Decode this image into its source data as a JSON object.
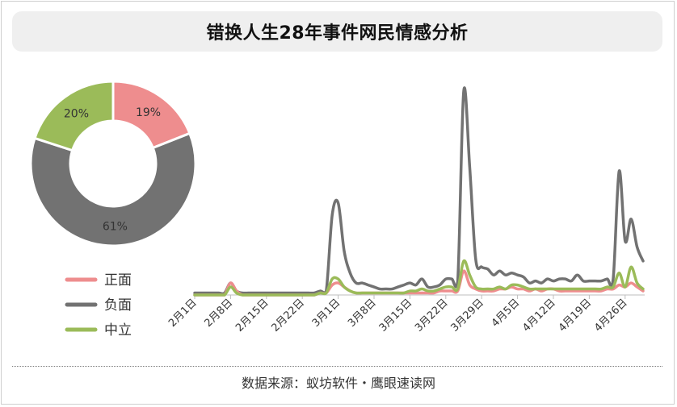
{
  "title": "错换人生28年事件网民情感分析",
  "source": "数据来源：蚁坊软件・鹰眼速读网",
  "colors": {
    "positive": "#ee8d8e",
    "negative": "#727272",
    "neutral": "#9bbb59"
  },
  "chart_data": [
    {
      "type": "pie",
      "subtype": "donut",
      "slices": [
        {
          "name": "正面",
          "value": 19,
          "label": "19%",
          "color": "#ee8d8e"
        },
        {
          "name": "负面",
          "value": 61,
          "label": "61%",
          "color": "#727272"
        },
        {
          "name": "中立",
          "value": 20,
          "label": "20%",
          "color": "#9bbb59"
        }
      ]
    },
    {
      "type": "line",
      "legend": [
        "正面",
        "负面",
        "中立"
      ],
      "legend_position": "left",
      "x_start": "2月1日",
      "x_end": "4月29日",
      "x_tick_labels": [
        "2月1日",
        "2月8日",
        "2月15日",
        "2月22日",
        "3月1日",
        "3月8日",
        "3月15日",
        "3月22日",
        "3月29日",
        "4月5日",
        "4月12日",
        "4月19日",
        "4月26日"
      ],
      "grid": false,
      "y_axis_visible": false,
      "series": [
        {
          "name": "负面",
          "color": "#727272",
          "values": [
            1,
            1,
            1,
            1,
            1,
            1,
            6,
            2,
            1,
            1,
            1,
            1,
            1,
            1,
            1,
            1,
            1,
            1,
            1,
            1,
            1,
            2,
            2,
            40,
            46,
            22,
            11,
            6,
            6,
            5,
            4,
            3,
            3,
            3,
            4,
            5,
            6,
            5,
            8,
            4,
            4,
            5,
            8,
            8,
            7,
            102,
            64,
            18,
            14,
            13,
            10,
            12,
            10,
            11,
            10,
            9,
            6,
            7,
            6,
            8,
            7,
            8,
            8,
            7,
            10,
            7,
            7,
            7,
            7,
            8,
            8,
            62,
            27,
            38,
            24,
            17
          ]
        },
        {
          "name": "正面",
          "color": "#ee8d8e",
          "values": [
            0,
            0,
            0,
            0,
            0,
            0,
            6,
            2,
            0,
            0,
            0,
            0,
            0,
            0,
            0,
            0,
            0,
            0,
            0,
            0,
            0,
            1,
            1,
            5,
            6,
            4,
            2,
            1,
            1,
            1,
            1,
            1,
            1,
            1,
            1,
            1,
            1,
            1,
            1,
            1,
            1,
            2,
            2,
            2,
            2,
            12,
            5,
            3,
            2,
            2,
            2,
            3,
            3,
            4,
            3,
            3,
            2,
            3,
            2,
            3,
            3,
            2,
            2,
            2,
            2,
            2,
            2,
            2,
            2,
            3,
            3,
            5,
            4,
            6,
            4,
            2
          ]
        },
        {
          "name": "中立",
          "color": "#9bbb59",
          "values": [
            0,
            0,
            0,
            0,
            0,
            0,
            4,
            1,
            0,
            0,
            0,
            0,
            0,
            0,
            0,
            0,
            0,
            0,
            0,
            0,
            0,
            1,
            1,
            8,
            8,
            4,
            2,
            1,
            1,
            1,
            1,
            1,
            1,
            1,
            1,
            1,
            2,
            2,
            3,
            2,
            2,
            3,
            4,
            4,
            3,
            17,
            10,
            4,
            3,
            3,
            3,
            4,
            3,
            5,
            5,
            4,
            3,
            3,
            3,
            3,
            3,
            3,
            3,
            3,
            3,
            3,
            3,
            3,
            3,
            4,
            4,
            11,
            4,
            14,
            6,
            3
          ]
        }
      ]
    }
  ]
}
